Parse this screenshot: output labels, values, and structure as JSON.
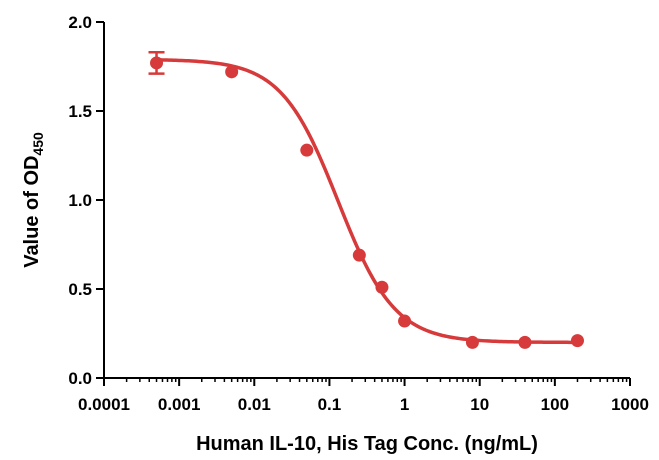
{
  "chart_data": {
    "type": "scatter",
    "xscale": "log",
    "xlim": [
      0.0001,
      1000
    ],
    "ylim": [
      0,
      2
    ],
    "x_ticks": [
      0.0001,
      0.001,
      0.01,
      0.1,
      1,
      10,
      100,
      1000
    ],
    "x_tick_labels": [
      "0.0001",
      "0.001",
      "0.01",
      "0.1",
      "1",
      "10",
      "100",
      "1000"
    ],
    "y_ticks": [
      0,
      0.5,
      1,
      1.5,
      2
    ],
    "y_tick_labels": [
      "0.0",
      "0.5",
      "1.0",
      "1.5",
      "2.0"
    ],
    "xlabel": "Human IL-10, His Tag Conc. (ng/mL)",
    "ylabel_main": "Value of OD",
    "ylabel_sub": "450",
    "grid": false,
    "color": "#d63a3a",
    "series": [
      {
        "x": [
          0.0005,
          0.005,
          0.05,
          0.25,
          0.5,
          1,
          8,
          40,
          200
        ],
        "y": [
          1.77,
          1.72,
          1.28,
          0.69,
          0.51,
          0.32,
          0.2,
          0.2,
          0.21
        ],
        "error": [
          0.06,
          0,
          0,
          0,
          0,
          0,
          0,
          0,
          0
        ]
      }
    ],
    "fit_curve": {
      "type": "4PL",
      "top": 1.79,
      "bottom": 0.2,
      "ec50": 0.13,
      "hill": 1.15,
      "x_range": [
        0.0005,
        200
      ]
    }
  }
}
